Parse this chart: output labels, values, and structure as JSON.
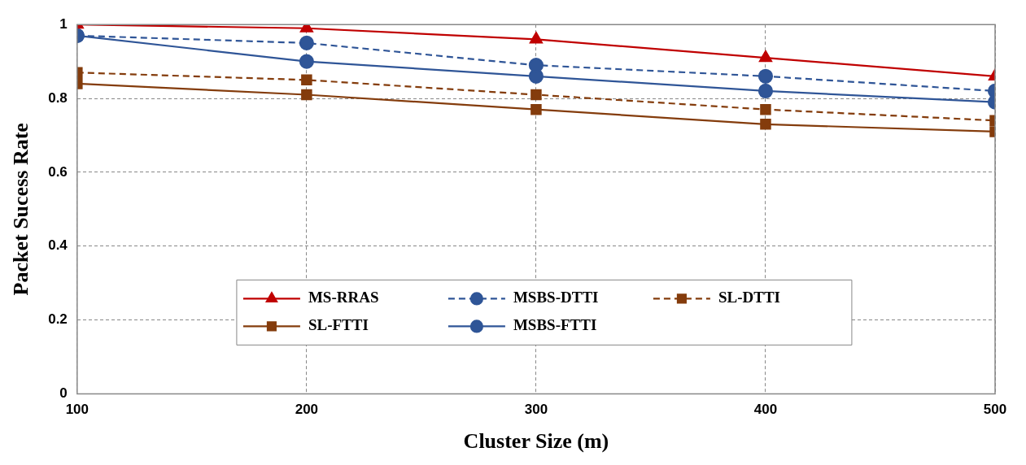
{
  "chart_data": {
    "type": "line",
    "xlabel": "Cluster Size (m)",
    "ylabel": "Packet Sucess Rate",
    "x": [
      100,
      200,
      300,
      400,
      500
    ],
    "xlim": [
      100,
      500
    ],
    "xticks": [
      100,
      200,
      300,
      400,
      500
    ],
    "ylim": [
      0,
      1
    ],
    "yticks": [
      0,
      0.2,
      0.4,
      0.6,
      0.8,
      1
    ],
    "grid": true,
    "legend": "bottom",
    "series": [
      {
        "name": "MS-RRAS",
        "color": "#c00000",
        "marker": "triangle",
        "line_style": "solid",
        "values": [
          1.0,
          0.99,
          0.96,
          0.91,
          0.86
        ]
      },
      {
        "name": "MSBS-DTTI",
        "color": "#2f5597",
        "marker": "circle",
        "line_style": "dashed",
        "values": [
          0.97,
          0.95,
          0.89,
          0.86,
          0.82
        ]
      },
      {
        "name": "SL-DTTI",
        "color": "#843c0c",
        "marker": "square",
        "line_style": "dashed",
        "values": [
          0.87,
          0.85,
          0.81,
          0.77,
          0.74
        ]
      },
      {
        "name": "SL-FTTI",
        "color": "#843c0c",
        "marker": "square",
        "line_style": "solid",
        "values": [
          0.84,
          0.81,
          0.77,
          0.73,
          0.71
        ]
      },
      {
        "name": "MSBS-FTTI",
        "color": "#2f5597",
        "marker": "circle",
        "line_style": "solid",
        "values": [
          0.97,
          0.9,
          0.86,
          0.82,
          0.79
        ]
      }
    ]
  }
}
